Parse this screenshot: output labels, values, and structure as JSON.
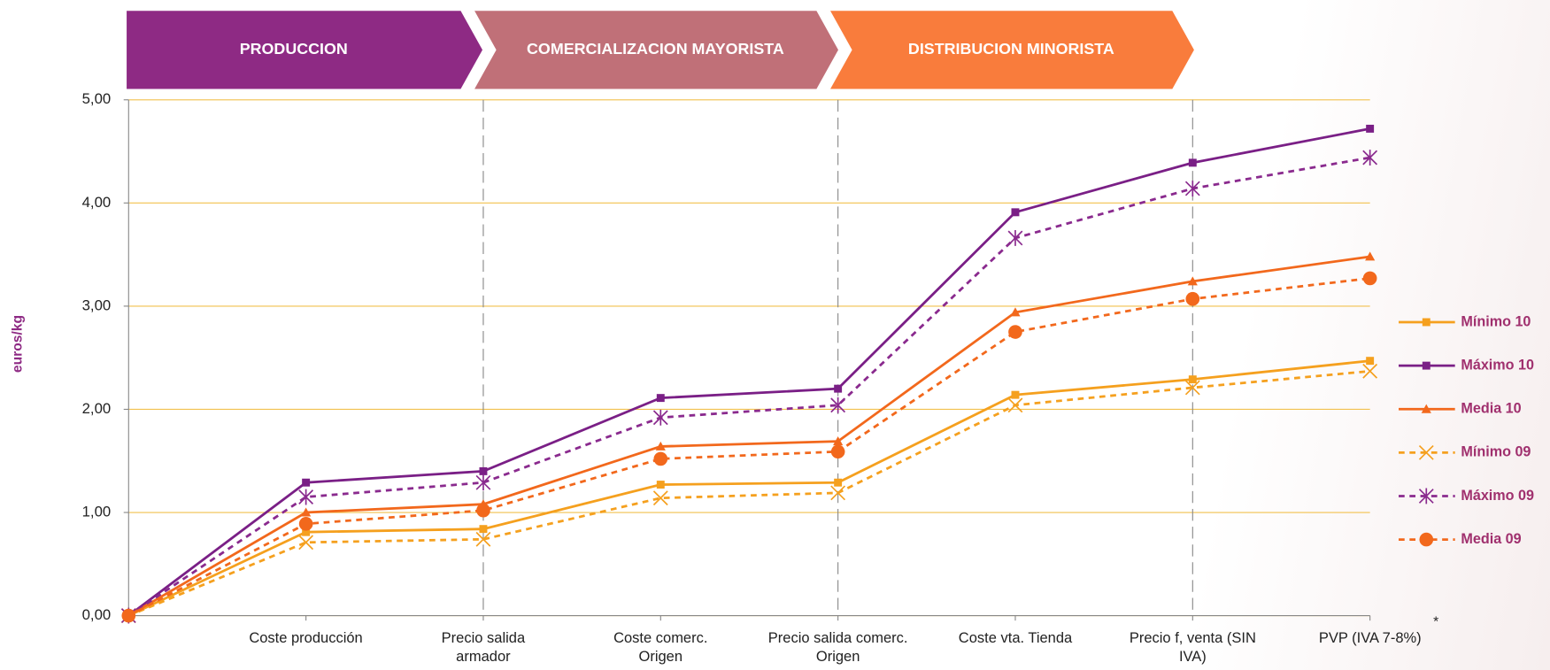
{
  "chart_data": {
    "type": "line",
    "stages": [
      {
        "label": "PRODUCCION",
        "color": "#8e2a84"
      },
      {
        "label": "COMERCIALIZACION MAYORISTA",
        "color": "#c07078"
      },
      {
        "label": "DISTRIBUCION MINORISTA",
        "color": "#f97c3c"
      }
    ],
    "y_label": "euros/kg",
    "categories": [
      null,
      "Coste producción",
      "Precio salida armador",
      "Coste comerc. Origen",
      "Precio salida comerc. Origen",
      "Coste vta. Tienda",
      "Precio f, venta (SIN IVA)",
      "PVP (IVA 7-8%)"
    ],
    "annotation": "*",
    "ylim": [
      0,
      5
    ],
    "yticks": [
      {
        "value": 0,
        "label": "0,00"
      },
      {
        "value": 1,
        "label": "1,00"
      },
      {
        "value": 2,
        "label": "2,00"
      },
      {
        "value": 3,
        "label": "3,00"
      },
      {
        "value": 4,
        "label": "4,00"
      },
      {
        "value": 5,
        "label": "5,00"
      }
    ],
    "grid": true,
    "dividers": [
      2,
      4,
      6
    ],
    "legend": "right",
    "series": [
      {
        "name": "Mínimo 10",
        "color": "#f5a01e",
        "dash": false,
        "marker": "square",
        "values": [
          0,
          0.81,
          0.84,
          1.27,
          1.29,
          2.14,
          2.29,
          2.47
        ]
      },
      {
        "name": "Máximo 10",
        "color": "#7a1f86",
        "dash": false,
        "marker": "square",
        "values": [
          0,
          1.29,
          1.4,
          2.11,
          2.2,
          3.91,
          4.39,
          4.72
        ]
      },
      {
        "name": "Media 10",
        "color": "#f2681c",
        "dash": false,
        "marker": "triangle",
        "values": [
          0,
          1.0,
          1.08,
          1.64,
          1.69,
          2.94,
          3.24,
          3.48
        ]
      },
      {
        "name": "Mínimo 09",
        "color": "#f5a01e",
        "dash": true,
        "marker": "x",
        "values": [
          0,
          0.71,
          0.74,
          1.14,
          1.19,
          2.04,
          2.21,
          2.37
        ]
      },
      {
        "name": "Máximo 09",
        "color": "#8a2a8e",
        "dash": true,
        "marker": "asterisk",
        "values": [
          0,
          1.15,
          1.29,
          1.92,
          2.04,
          3.66,
          4.14,
          4.44
        ]
      },
      {
        "name": "Media 09",
        "color": "#f2681c",
        "dash": true,
        "marker": "circle",
        "values": [
          0,
          0.89,
          1.02,
          1.52,
          1.59,
          2.75,
          3.07,
          3.27
        ]
      }
    ]
  }
}
